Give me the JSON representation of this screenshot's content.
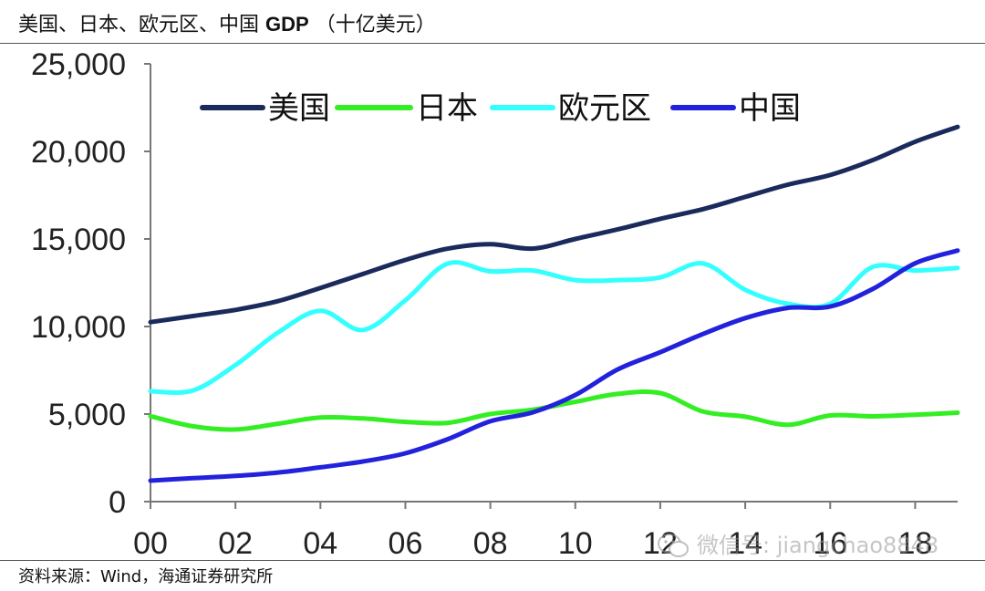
{
  "header": {
    "title_prefix": "美国、日本、欧元区、中国",
    "title_gdp": "GDP",
    "title_suffix": "（十亿美元）"
  },
  "footer": {
    "source": "资料来源：Wind，海通证券研究所",
    "watermark": "微信号: jiangchao8848"
  },
  "chart_data": {
    "type": "line",
    "title": "美国、日本、欧元区、中国 GDP（十亿美元）",
    "xlabel": "",
    "ylabel": "",
    "x": [
      2000,
      2001,
      2002,
      2003,
      2004,
      2005,
      2006,
      2007,
      2008,
      2009,
      2010,
      2011,
      2012,
      2013,
      2014,
      2015,
      2016,
      2017,
      2018,
      2019
    ],
    "x_tick_values": [
      2000,
      2002,
      2004,
      2006,
      2008,
      2010,
      2012,
      2014,
      2016,
      2018
    ],
    "x_tick_labels": [
      "00",
      "02",
      "04",
      "06",
      "08",
      "10",
      "12",
      "14",
      "16",
      "18"
    ],
    "xlim": [
      2000,
      2019
    ],
    "ylim": [
      0,
      25000
    ],
    "y_ticks": [
      0,
      5000,
      10000,
      15000,
      20000,
      25000
    ],
    "y_tick_labels": [
      "0",
      "5,000",
      "10,000",
      "15,000",
      "20,000",
      "25,000"
    ],
    "grid": false,
    "legend_position": "top",
    "series": [
      {
        "name": "美国",
        "color": "#1b2a5c",
        "values": [
          10250,
          10600,
          10950,
          11450,
          12200,
          13000,
          13800,
          14450,
          14700,
          14450,
          15000,
          15550,
          16150,
          16700,
          17400,
          18100,
          18650,
          19500,
          20550,
          21400
        ]
      },
      {
        "name": "日本",
        "color": "#33ee22",
        "values": [
          4880,
          4300,
          4120,
          4450,
          4800,
          4750,
          4550,
          4500,
          5000,
          5250,
          5700,
          6150,
          6200,
          5150,
          4850,
          4390,
          4920,
          4870,
          4960,
          5080
        ]
      },
      {
        "name": "欧元区",
        "color": "#33ffff",
        "values": [
          6300,
          6350,
          7800,
          9650,
          10900,
          9800,
          11500,
          13600,
          13150,
          13200,
          12650,
          12650,
          12800,
          13600,
          12100,
          11300,
          11300,
          13400,
          13200,
          13350
        ]
      },
      {
        "name": "中国",
        "color": "#2222dd",
        "values": [
          1200,
          1340,
          1470,
          1660,
          1960,
          2290,
          2760,
          3570,
          4590,
          5100,
          6090,
          7550,
          8530,
          9570,
          10480,
          11060,
          11140,
          12140,
          13610,
          14340
        ]
      }
    ]
  }
}
